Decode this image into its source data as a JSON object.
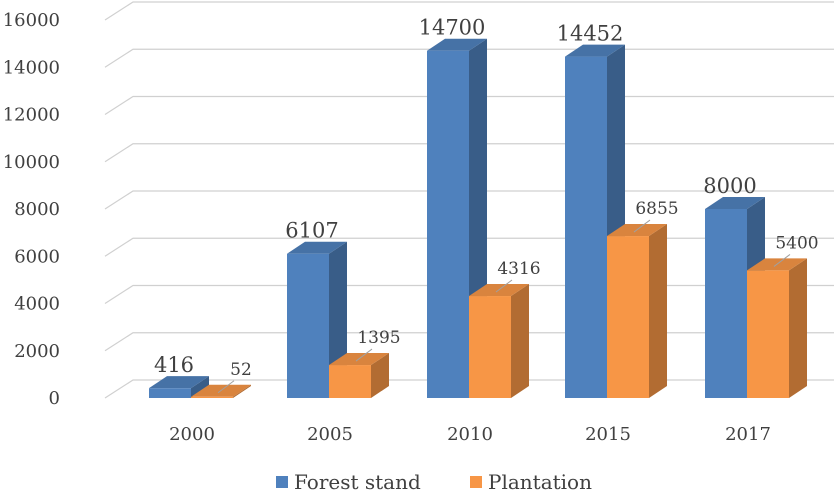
{
  "chart_data": {
    "type": "bar",
    "categories": [
      "2000",
      "2005",
      "2010",
      "2015",
      "2017"
    ],
    "series": [
      {
        "name": "Forest stand",
        "values": [
          416,
          6107,
          14700,
          14452,
          8000
        ],
        "color": "#4F81BD"
      },
      {
        "name": "Plantation",
        "values": [
          52,
          1395,
          4316,
          6855,
          5400
        ],
        "color": "#F79646"
      }
    ],
    "yticks": [
      "0",
      "2000",
      "4000",
      "6000",
      "8000",
      "10000",
      "12000",
      "14000",
      "16000"
    ],
    "ylim": [
      0,
      16000
    ],
    "grid": true,
    "legend_position": "bottom",
    "title": "",
    "xlabel": "",
    "ylabel": ""
  }
}
